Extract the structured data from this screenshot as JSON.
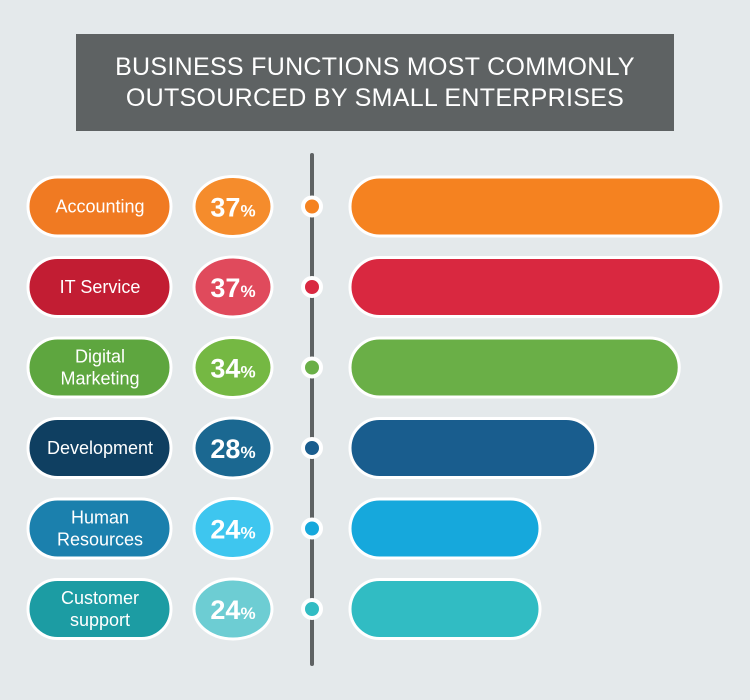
{
  "chart_data": {
    "type": "bar",
    "orientation": "horizontal",
    "title_lines": [
      "BUSINESS FUNCTIONS MOST COMMONLY",
      "OUTSOURCED BY SMALL ENTERPRISES"
    ],
    "categories": [
      [
        "Accounting"
      ],
      [
        "IT Service"
      ],
      [
        "Digital",
        "Marketing"
      ],
      [
        "Development"
      ],
      [
        "Human",
        "Resources"
      ],
      [
        "Customer",
        "support"
      ]
    ],
    "values": [
      37,
      37,
      34,
      28,
      24,
      24
    ],
    "value_suffix": "%",
    "xlim": [
      0,
      37
    ],
    "grid": false,
    "legend": "none",
    "colors": {
      "label_pills": [
        "#f07a22",
        "#c21d33",
        "#5ea63f",
        "#0f3f61",
        "#1b80ad",
        "#1c9ca3"
      ],
      "value_circles": [
        "#f58c2c",
        "#e04a5c",
        "#75b843",
        "#1b6891",
        "#3ec6ef",
        "#6dcdd3"
      ],
      "bars": [
        "#f58220",
        "#d92840",
        "#6aaf47",
        "#195d8e",
        "#16a8dc",
        "#31bcc3"
      ],
      "axis_line": "#5e6263",
      "title_background": "#5e6263",
      "background": "#e4e9eb"
    }
  }
}
